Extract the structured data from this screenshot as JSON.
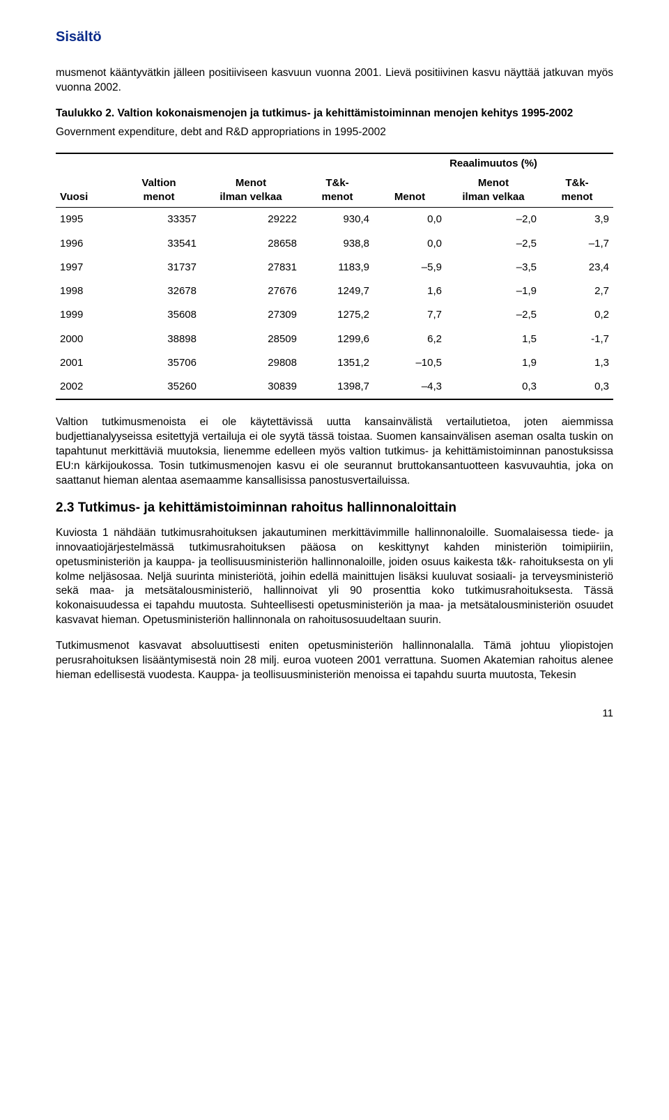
{
  "header": {
    "title_link": "Sisältö"
  },
  "intro_para": "musmenot kääntyvätkin jälleen positiiviseen kasvuun vuonna 2001. Lievä positiivinen kasvu näyttää jatkuvan myös vuonna 2002.",
  "table_caption": "Taulukko 2.",
  "table_title": "Valtion kokonaismenojen ja tutkimus- ja kehittämistoiminnan menojen kehitys 1995-2002",
  "table_subtitle": "Government expenditure, debt and R&D appropriations in 1995-2002",
  "table": {
    "type": "table",
    "background_color": "#ffffff",
    "font_size": 15,
    "columns": [
      {
        "key": "vuosi",
        "label1": "Vuosi",
        "label2": "",
        "align": "left",
        "width": "11%"
      },
      {
        "key": "valtion_menot",
        "label1": "Valtion",
        "label2": "menot",
        "align": "right",
        "width": "15%"
      },
      {
        "key": "menot_ilman_velkaa",
        "label1": "Menot",
        "label2": "ilman velkaa",
        "align": "right",
        "width": "18%"
      },
      {
        "key": "tk_menot",
        "label1": "T&k-",
        "label2": "menot",
        "align": "right",
        "width": "13%"
      },
      {
        "key": "r_menot",
        "label1": "Menot",
        "label2": "",
        "align": "right",
        "width": "13%"
      },
      {
        "key": "r_menot_ilman_velkaa",
        "label1": "Menot",
        "label2": "ilman velkaa",
        "align": "right",
        "width": "17%"
      },
      {
        "key": "r_tk_menot",
        "label1": "T&k-",
        "label2": "menot",
        "align": "right",
        "width": "13%"
      }
    ],
    "group_header": "Reaalimuutos (%)",
    "rows": [
      [
        "1995",
        "33357",
        "29222",
        "930,4",
        "0,0",
        "–2,0",
        "3,9"
      ],
      [
        "1996",
        "33541",
        "28658",
        "938,8",
        "0,0",
        "–2,5",
        "–1,7"
      ],
      [
        "1997",
        "31737",
        "27831",
        "1183,9",
        "–5,9",
        "–3,5",
        "23,4"
      ],
      [
        "1998",
        "32678",
        "27676",
        "1249,7",
        "1,6",
        "–1,9",
        "2,7"
      ],
      [
        "1999",
        "35608",
        "27309",
        "1275,2",
        "7,7",
        "–2,5",
        "0,2"
      ],
      [
        "2000",
        "38898",
        "28509",
        "1299,6",
        "6,2",
        "1,5",
        "-1,7"
      ],
      [
        "2001",
        "35706",
        "29808",
        "1351,2",
        "–10,5",
        "1,9",
        "1,3"
      ],
      [
        "2002",
        "35260",
        "30839",
        "1398,7",
        "–4,3",
        "0,3",
        "0,3"
      ]
    ]
  },
  "after_table_para": "Valtion tutkimusmenoista ei ole käytettävissä uutta kansainvälistä vertailutietoa, joten aiemmissa budjettianalyyseissa esitettyjä vertailuja ei ole syytä tässä toistaa. Suomen kansainvälisen aseman osalta tuskin on tapahtunut merkittäviä muutoksia, lienemme edelleen myös valtion tutkimus- ja kehittämistoiminnan panostuksissa EU:n kärkijoukossa. Tosin tutkimusmenojen kasvu ei ole seurannut bruttokansantuotteen kasvuvauhtia, joka on saattanut hieman alentaa asemaamme kansallisissa panostusvertailuissa.",
  "section_heading": "2.3 Tutkimus- ja kehittämistoiminnan rahoitus hallinnonaloittain",
  "section_para1": "Kuviosta 1 nähdään tutkimusrahoituksen jakautuminen merkittävimmille hallinnonaloille. Suomalaisessa tiede- ja innovaatiojärjestelmässä tutkimusrahoituksen pääosa on keskittynyt kahden ministeriön toimipiiriin, opetusministeriön ja kauppa- ja teollisuusministeriön hallinnonaloille, joiden osuus kaikesta t&k- rahoituksesta on yli kolme neljäsosaa. Neljä suurinta ministeriötä, joihin edellä mainittujen lisäksi kuuluvat sosiaali- ja terveysministeriö sekä maa- ja metsätalousministeriö, hallinnoivat yli 90 prosenttia koko tutkimusrahoituksesta. Tässä kokonaisuudessa ei tapahdu muutosta. Suhteellisesti opetusministeriön ja maa- ja metsätalousministeriön osuudet kasvavat hieman. Opetusministeriön hallinnonala on rahoitusosuudeltaan suurin.",
  "section_para2": "Tutkimusmenot kasvavat absoluuttisesti eniten opetusministeriön hallinnonalalla. Tämä johtuu yliopistojen perusrahoituksen lisääntymisestä noin 28 milj. euroa vuoteen 2001 verrattuna. Suomen Akatemian rahoitus alenee hieman edellisestä vuodesta. Kauppa- ja teollisuusministeriön menoissa ei tapahdu suurta muutosta, Tekesin",
  "page_number": "11"
}
